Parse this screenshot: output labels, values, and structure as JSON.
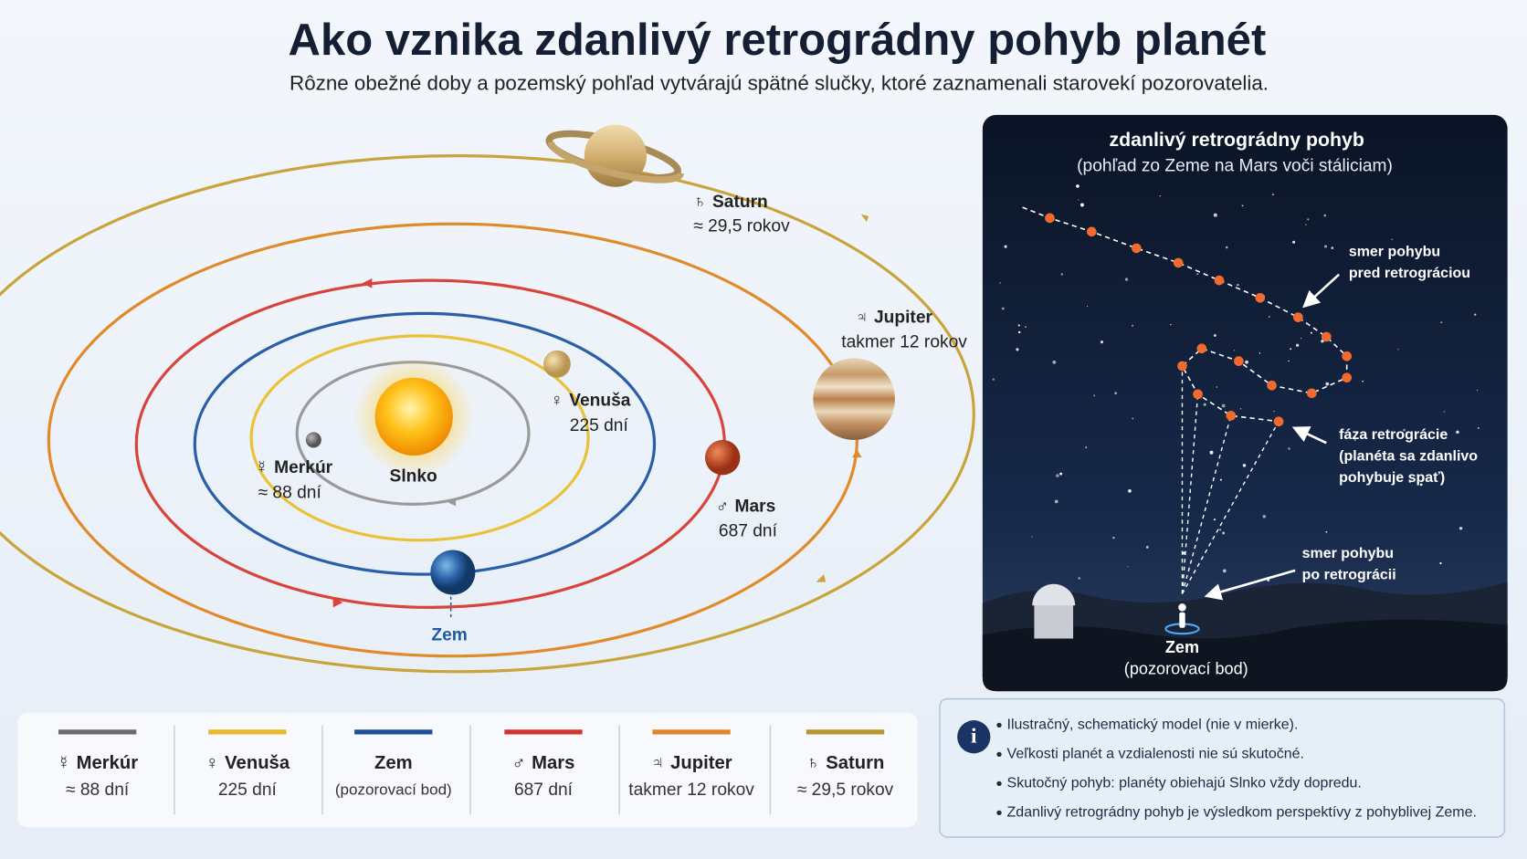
{
  "header": {
    "title": "Ako vznika zdanlivý retrográdny pohyb planét",
    "subtitle": "Rôzne obežné doby a pozemský pohľad vytvárajú spätné slučky, ktoré zaznamenali starovekí pozorovatelia."
  },
  "orbit_diagram": {
    "sun": "Slnko",
    "earth": "Zem",
    "planets": [
      {
        "symbol": "☿",
        "name": "Merkúr",
        "period": "≈ 88 dní"
      },
      {
        "symbol": "♀",
        "name": "Venuša",
        "period": "225 dní"
      },
      {
        "symbol": "♂",
        "name": "Mars",
        "period": "687 dní"
      },
      {
        "symbol": "♃",
        "name": "Jupiter",
        "period": "takmer 12 rokov"
      },
      {
        "symbol": "♄",
        "name": "Saturn",
        "period": "≈ 29,5 rokov"
      }
    ]
  },
  "sky_panel": {
    "title": "zdanlivý retrográdny pohyb",
    "subtitle": "(pohľad zo Zeme na Mars voči stáliciam)",
    "before": [
      "smer pohybu",
      "pred retrográciou"
    ],
    "retrograde": [
      "fáza retrográcie",
      "(planéta sa zdanlivo",
      "pohybuje spať)"
    ],
    "after": [
      "smer pohybu",
      "po retrográcii"
    ],
    "observer": "Zem",
    "observer_note": "(pozorovací bod)"
  },
  "legend": [
    {
      "symbol": "☿",
      "name": "Merkúr",
      "detail": "≈ 88 dní"
    },
    {
      "symbol": "♀",
      "name": "Venuša",
      "detail": "225 dní"
    },
    {
      "name": "Zem",
      "detail": "(pozorovací bod)"
    },
    {
      "symbol": "♂",
      "name": "Mars",
      "detail": "687 dní"
    },
    {
      "symbol": "♃",
      "name": "Jupiter",
      "detail": "takmer 12 rokov"
    },
    {
      "symbol": "♄",
      "name": "Saturn",
      "detail": "≈ 29,5 rokov"
    }
  ],
  "notes": [
    "Ilustračný, schematický model (nie v mierke).",
    "Veľkosti planét a vzdialenosti nie sú skutočné.",
    "Skutočný pohyb: planéty obiehajú Slnko vždy dopredu.",
    "Zdanlivý retrográdny pohyb je výsledkom perspektívy z pohyblivej Zeme."
  ]
}
